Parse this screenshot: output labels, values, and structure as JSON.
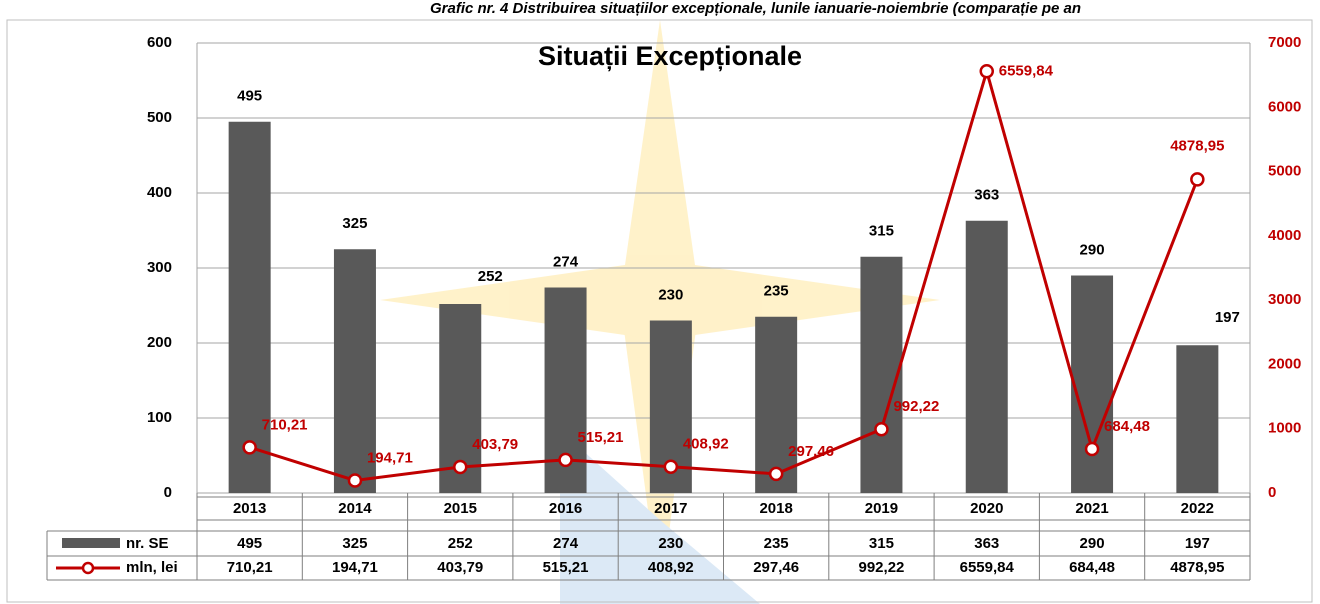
{
  "caption": "Grafic nr. 4 Distribuirea situațiilor excepționale, lunile ianuarie-noiembrie (comparație pe an",
  "chart_data": {
    "type": "bar-line",
    "title": "Situații Excepționale",
    "categories": [
      "2013",
      "2014",
      "2015",
      "2016",
      "2017",
      "2018",
      "2019",
      "2020",
      "2021",
      "2022"
    ],
    "series": [
      {
        "name": "nr. SE",
        "type": "bar",
        "color": "#595959",
        "values": [
          495,
          325,
          252,
          274,
          230,
          235,
          315,
          363,
          290,
          197
        ]
      },
      {
        "name": "mln, lei",
        "type": "line",
        "axis": "y2",
        "color": "#c00000",
        "values": [
          710.21,
          194.71,
          403.79,
          515.21,
          408.92,
          297.46,
          992.22,
          6559.84,
          684.48,
          4878.95
        ],
        "value_labels": [
          "710,21",
          "194,71",
          "403,79",
          "515,21",
          "408,92",
          "297,46",
          "992,22",
          "6559,84",
          "684,48",
          "4878,95"
        ]
      }
    ],
    "ylim": [
      0,
      600
    ],
    "yticks": [
      0,
      100,
      200,
      300,
      400,
      500,
      600
    ],
    "y2lim": [
      0,
      7000
    ],
    "y2ticks": [
      0,
      1000,
      2000,
      3000,
      4000,
      5000,
      6000,
      7000
    ],
    "grid": true
  }
}
